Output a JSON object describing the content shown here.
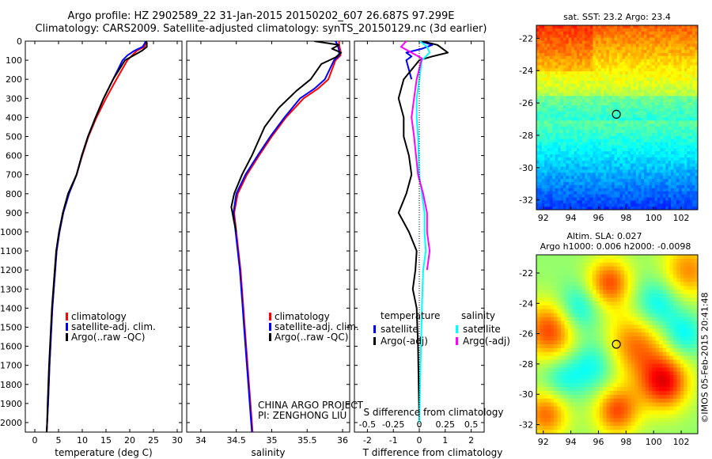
{
  "title_line1": "Argo profile: HZ 2902589_22 31-Jan-2015 20150202_607 26.687S 97.299E",
  "title_line2": "Climatology: CARS2009. Satellite-adjusted climatology: synTS_20150129.nc (3d earlier)",
  "credit": "©IMOS 05-Feb-2015 20:41:48",
  "project_line1": "CHINA ARGO PROJECT",
  "project_line2": "PI: ZENGHONG LIU",
  "colors": {
    "climatology": "#ff0000",
    "satellite": "#0000ff",
    "argo": "#000000",
    "sal_satellite": "#00ffff",
    "sal_argo": "#ff00ff"
  },
  "chart_data": [
    {
      "type": "line",
      "xlabel": "temperature (deg C)",
      "xlim": [
        -2,
        31
      ],
      "ylim": [
        0,
        2050
      ],
      "y_inverted": true,
      "xticks": [
        0,
        5,
        10,
        15,
        20,
        25,
        30
      ],
      "yticks": [
        0,
        100,
        200,
        300,
        400,
        500,
        600,
        700,
        800,
        900,
        1000,
        1100,
        1200,
        1300,
        1400,
        1500,
        1600,
        1700,
        1800,
        1900,
        2000
      ],
      "legend_position": "lower-left",
      "series": [
        {
          "name": "climatology",
          "color": "#ff0000",
          "points": [
            [
              23.5,
              0
            ],
            [
              23.4,
              10
            ],
            [
              23.1,
              30
            ],
            [
              21.5,
              50
            ],
            [
              20.5,
              75
            ],
            [
              19.5,
              100
            ],
            [
              17.2,
              200
            ],
            [
              15.0,
              300
            ],
            [
              13.0,
              400
            ],
            [
              11.3,
              500
            ],
            [
              10.0,
              600
            ],
            [
              8.8,
              700
            ],
            [
              7.2,
              800
            ],
            [
              6.0,
              900
            ],
            [
              5.2,
              1000
            ],
            [
              4.6,
              1100
            ],
            [
              4.3,
              1200
            ],
            [
              4.0,
              1300
            ],
            [
              3.7,
              1400
            ],
            [
              3.5,
              1500
            ],
            [
              3.3,
              1600
            ],
            [
              3.1,
              1700
            ],
            [
              2.95,
              1800
            ],
            [
              2.8,
              1900
            ],
            [
              2.6,
              2000
            ],
            [
              2.5,
              2050
            ]
          ]
        },
        {
          "name": "satellite-adj. clim.",
          "color": "#0000ff",
          "points": [
            [
              23.3,
              0
            ],
            [
              23.2,
              10
            ],
            [
              22.7,
              30
            ],
            [
              21.0,
              50
            ],
            [
              19.5,
              75
            ],
            [
              18.5,
              100
            ],
            [
              16.5,
              200
            ],
            [
              14.5,
              300
            ],
            [
              12.8,
              400
            ],
            [
              11.2,
              500
            ],
            [
              9.9,
              600
            ],
            [
              8.8,
              700
            ],
            [
              7.2,
              800
            ],
            [
              6.0,
              900
            ],
            [
              5.2,
              1000
            ],
            [
              4.6,
              1100
            ],
            [
              4.3,
              1200
            ],
            [
              4.0,
              1300
            ],
            [
              3.7,
              1400
            ],
            [
              3.5,
              1500
            ],
            [
              3.3,
              1600
            ],
            [
              3.1,
              1700
            ],
            [
              2.95,
              1800
            ],
            [
              2.8,
              1900
            ],
            [
              2.6,
              2000
            ],
            [
              2.5,
              2050
            ]
          ]
        },
        {
          "name": "Argo(..raw -QC)",
          "color": "#000000",
          "points": [
            [
              23.5,
              0
            ],
            [
              23.6,
              10
            ],
            [
              23.6,
              30
            ],
            [
              22.6,
              50
            ],
            [
              20.8,
              75
            ],
            [
              19.0,
              100
            ],
            [
              16.5,
              200
            ],
            [
              14.5,
              300
            ],
            [
              12.8,
              400
            ],
            [
              11.2,
              500
            ],
            [
              9.9,
              600
            ],
            [
              8.8,
              700
            ],
            [
              7.0,
              800
            ],
            [
              5.9,
              900
            ],
            [
              5.1,
              1000
            ],
            [
              4.5,
              1100
            ],
            [
              4.2,
              1200
            ],
            [
              3.9,
              1300
            ],
            [
              3.6,
              1400
            ],
            [
              3.4,
              1500
            ],
            [
              3.2,
              1600
            ],
            [
              3.0,
              1700
            ],
            [
              2.85,
              1800
            ],
            [
              2.7,
              1900
            ],
            [
              2.6,
              2000
            ],
            [
              2.5,
              2050
            ]
          ]
        }
      ]
    },
    {
      "type": "line",
      "xlabel": "salinity",
      "xlim": [
        33.8,
        36.1
      ],
      "ylim": [
        0,
        2050
      ],
      "y_inverted": true,
      "xticks": [
        34,
        34.5,
        35,
        35.5,
        36
      ],
      "legend_position": "lower-left",
      "series": [
        {
          "name": "climatology",
          "color": "#ff0000",
          "points": [
            [
              35.95,
              0
            ],
            [
              35.95,
              20
            ],
            [
              35.97,
              50
            ],
            [
              35.97,
              75
            ],
            [
              35.9,
              100
            ],
            [
              35.8,
              200
            ],
            [
              35.65,
              250
            ],
            [
              35.45,
              300
            ],
            [
              35.2,
              400
            ],
            [
              35.0,
              500
            ],
            [
              34.82,
              600
            ],
            [
              34.65,
              700
            ],
            [
              34.52,
              800
            ],
            [
              34.47,
              900
            ],
            [
              34.5,
              1000
            ],
            [
              34.53,
              1100
            ],
            [
              34.56,
              1200
            ],
            [
              34.58,
              1300
            ],
            [
              34.6,
              1400
            ],
            [
              34.62,
              1500
            ],
            [
              34.64,
              1600
            ],
            [
              34.66,
              1700
            ],
            [
              34.68,
              1800
            ],
            [
              34.7,
              1900
            ],
            [
              34.72,
              2000
            ],
            [
              34.73,
              2050
            ]
          ]
        },
        {
          "name": "satellite-adj. clim.",
          "color": "#0000ff",
          "points": [
            [
              35.9,
              0
            ],
            [
              35.93,
              20
            ],
            [
              35.95,
              50
            ],
            [
              35.95,
              75
            ],
            [
              35.88,
              100
            ],
            [
              35.75,
              200
            ],
            [
              35.6,
              250
            ],
            [
              35.4,
              300
            ],
            [
              35.18,
              400
            ],
            [
              34.98,
              500
            ],
            [
              34.8,
              600
            ],
            [
              34.63,
              700
            ],
            [
              34.5,
              800
            ],
            [
              34.46,
              900
            ],
            [
              34.49,
              1000
            ],
            [
              34.52,
              1100
            ],
            [
              34.55,
              1200
            ],
            [
              34.57,
              1300
            ],
            [
              34.59,
              1400
            ],
            [
              34.61,
              1500
            ],
            [
              34.63,
              1600
            ],
            [
              34.65,
              1700
            ],
            [
              34.67,
              1800
            ],
            [
              34.69,
              1900
            ],
            [
              34.71,
              2000
            ],
            [
              34.72,
              2050
            ]
          ]
        },
        {
          "name": "Argo(..raw -QC)",
          "color": "#000000",
          "points": [
            [
              35.6,
              0
            ],
            [
              35.95,
              20
            ],
            [
              35.85,
              40
            ],
            [
              35.98,
              60
            ],
            [
              35.9,
              85
            ],
            [
              35.7,
              120
            ],
            [
              35.55,
              200
            ],
            [
              35.35,
              260
            ],
            [
              35.1,
              350
            ],
            [
              34.9,
              450
            ],
            [
              34.72,
              600
            ],
            [
              34.58,
              700
            ],
            [
              34.47,
              800
            ],
            [
              34.43,
              870
            ],
            [
              34.47,
              950
            ],
            [
              34.5,
              1000
            ]
          ]
        }
      ]
    },
    {
      "type": "line",
      "xlabel": "T difference from climatology",
      "xlabel_top": "S difference from climatology",
      "xlim": [
        -2.5,
        2.5
      ],
      "ylim": [
        0,
        2050
      ],
      "y_inverted": true,
      "xticks": [
        -2,
        -1,
        0,
        1,
        2
      ],
      "xtick_labels_top": [
        "-0.5",
        "-0.25",
        "0",
        "0.25",
        "0.5"
      ],
      "legend_position": "lower",
      "legend_headers": [
        "temperature",
        "salinity"
      ],
      "series": [
        {
          "name": "satellite",
          "group": "temperature",
          "color": "#0000ff",
          "points": [
            [
              0.05,
              0
            ],
            [
              0.5,
              20
            ],
            [
              0.1,
              40
            ],
            [
              -0.5,
              60
            ],
            [
              -0.3,
              80
            ],
            [
              -0.5,
              100
            ],
            [
              -0.3,
              200
            ]
          ]
        },
        {
          "name": "Argo(-adj)",
          "group": "temperature",
          "color": "#000000",
          "points": [
            [
              0.1,
              0
            ],
            [
              0.7,
              20
            ],
            [
              1.1,
              60
            ],
            [
              0.5,
              80
            ],
            [
              0.0,
              100
            ],
            [
              -0.3,
              150
            ],
            [
              -0.6,
              200
            ],
            [
              -0.8,
              300
            ],
            [
              -0.6,
              400
            ],
            [
              -0.6,
              500
            ],
            [
              -0.4,
              600
            ],
            [
              -0.3,
              700
            ],
            [
              -0.5,
              800
            ],
            [
              -0.8,
              900
            ],
            [
              -0.4,
              1000
            ],
            [
              -0.1,
              1100
            ],
            [
              -0.15,
              1200
            ],
            [
              -0.25,
              1300
            ],
            [
              -0.1,
              1400
            ],
            [
              -0.05,
              1600
            ],
            [
              0.0,
              2000
            ]
          ]
        },
        {
          "name": "satellite",
          "group": "salinity",
          "color": "#00ffff",
          "points": [
            [
              0.02,
              0
            ],
            [
              0.3,
              30
            ],
            [
              0.4,
              60
            ],
            [
              0.1,
              100
            ],
            [
              0.0,
              200
            ],
            [
              -0.1,
              300
            ],
            [
              -0.1,
              400
            ],
            [
              -0.05,
              500
            ],
            [
              0.0,
              700
            ],
            [
              0.1,
              800
            ],
            [
              0.2,
              900
            ],
            [
              0.2,
              1000
            ],
            [
              0.25,
              1100
            ],
            [
              0.15,
              1200
            ],
            [
              0.1,
              1400
            ],
            [
              0.05,
              1700
            ],
            [
              0.0,
              2000
            ]
          ]
        },
        {
          "name": "Argo(-adj)",
          "group": "salinity",
          "color": "#ff00ff",
          "points": [
            [
              -0.5,
              0
            ],
            [
              -0.7,
              30
            ],
            [
              -0.3,
              60
            ],
            [
              0.1,
              90
            ],
            [
              -0.1,
              200
            ],
            [
              -0.2,
              300
            ],
            [
              -0.3,
              400
            ],
            [
              -0.2,
              500
            ],
            [
              -0.05,
              700
            ],
            [
              0.15,
              800
            ],
            [
              0.3,
              900
            ],
            [
              0.3,
              1000
            ],
            [
              0.4,
              1100
            ],
            [
              0.3,
              1200
            ]
          ]
        }
      ]
    },
    {
      "type": "heatmap",
      "title": "sat. SST: 23.2 Argo: 23.4",
      "xlim": [
        91.5,
        103.2
      ],
      "ylim": [
        -32.6,
        -21.2
      ],
      "xticks": [
        92,
        94,
        96,
        98,
        100,
        102
      ],
      "yticks": [
        -22,
        -24,
        -26,
        -28,
        -30,
        -32
      ],
      "marker": {
        "lon": 97.3,
        "lat": -26.7
      }
    },
    {
      "type": "heatmap",
      "title_line1": "Altim. SLA: 0.027",
      "title_line2": "Argo h1000: 0.006 h2000: -0.0098",
      "xlim": [
        91.5,
        103.2
      ],
      "ylim": [
        -32.6,
        -20.8
      ],
      "xticks": [
        92,
        94,
        96,
        98,
        100,
        102
      ],
      "yticks": [
        -22,
        -24,
        -26,
        -28,
        -30,
        -32
      ],
      "marker": {
        "lon": 97.3,
        "lat": -26.7
      }
    }
  ]
}
